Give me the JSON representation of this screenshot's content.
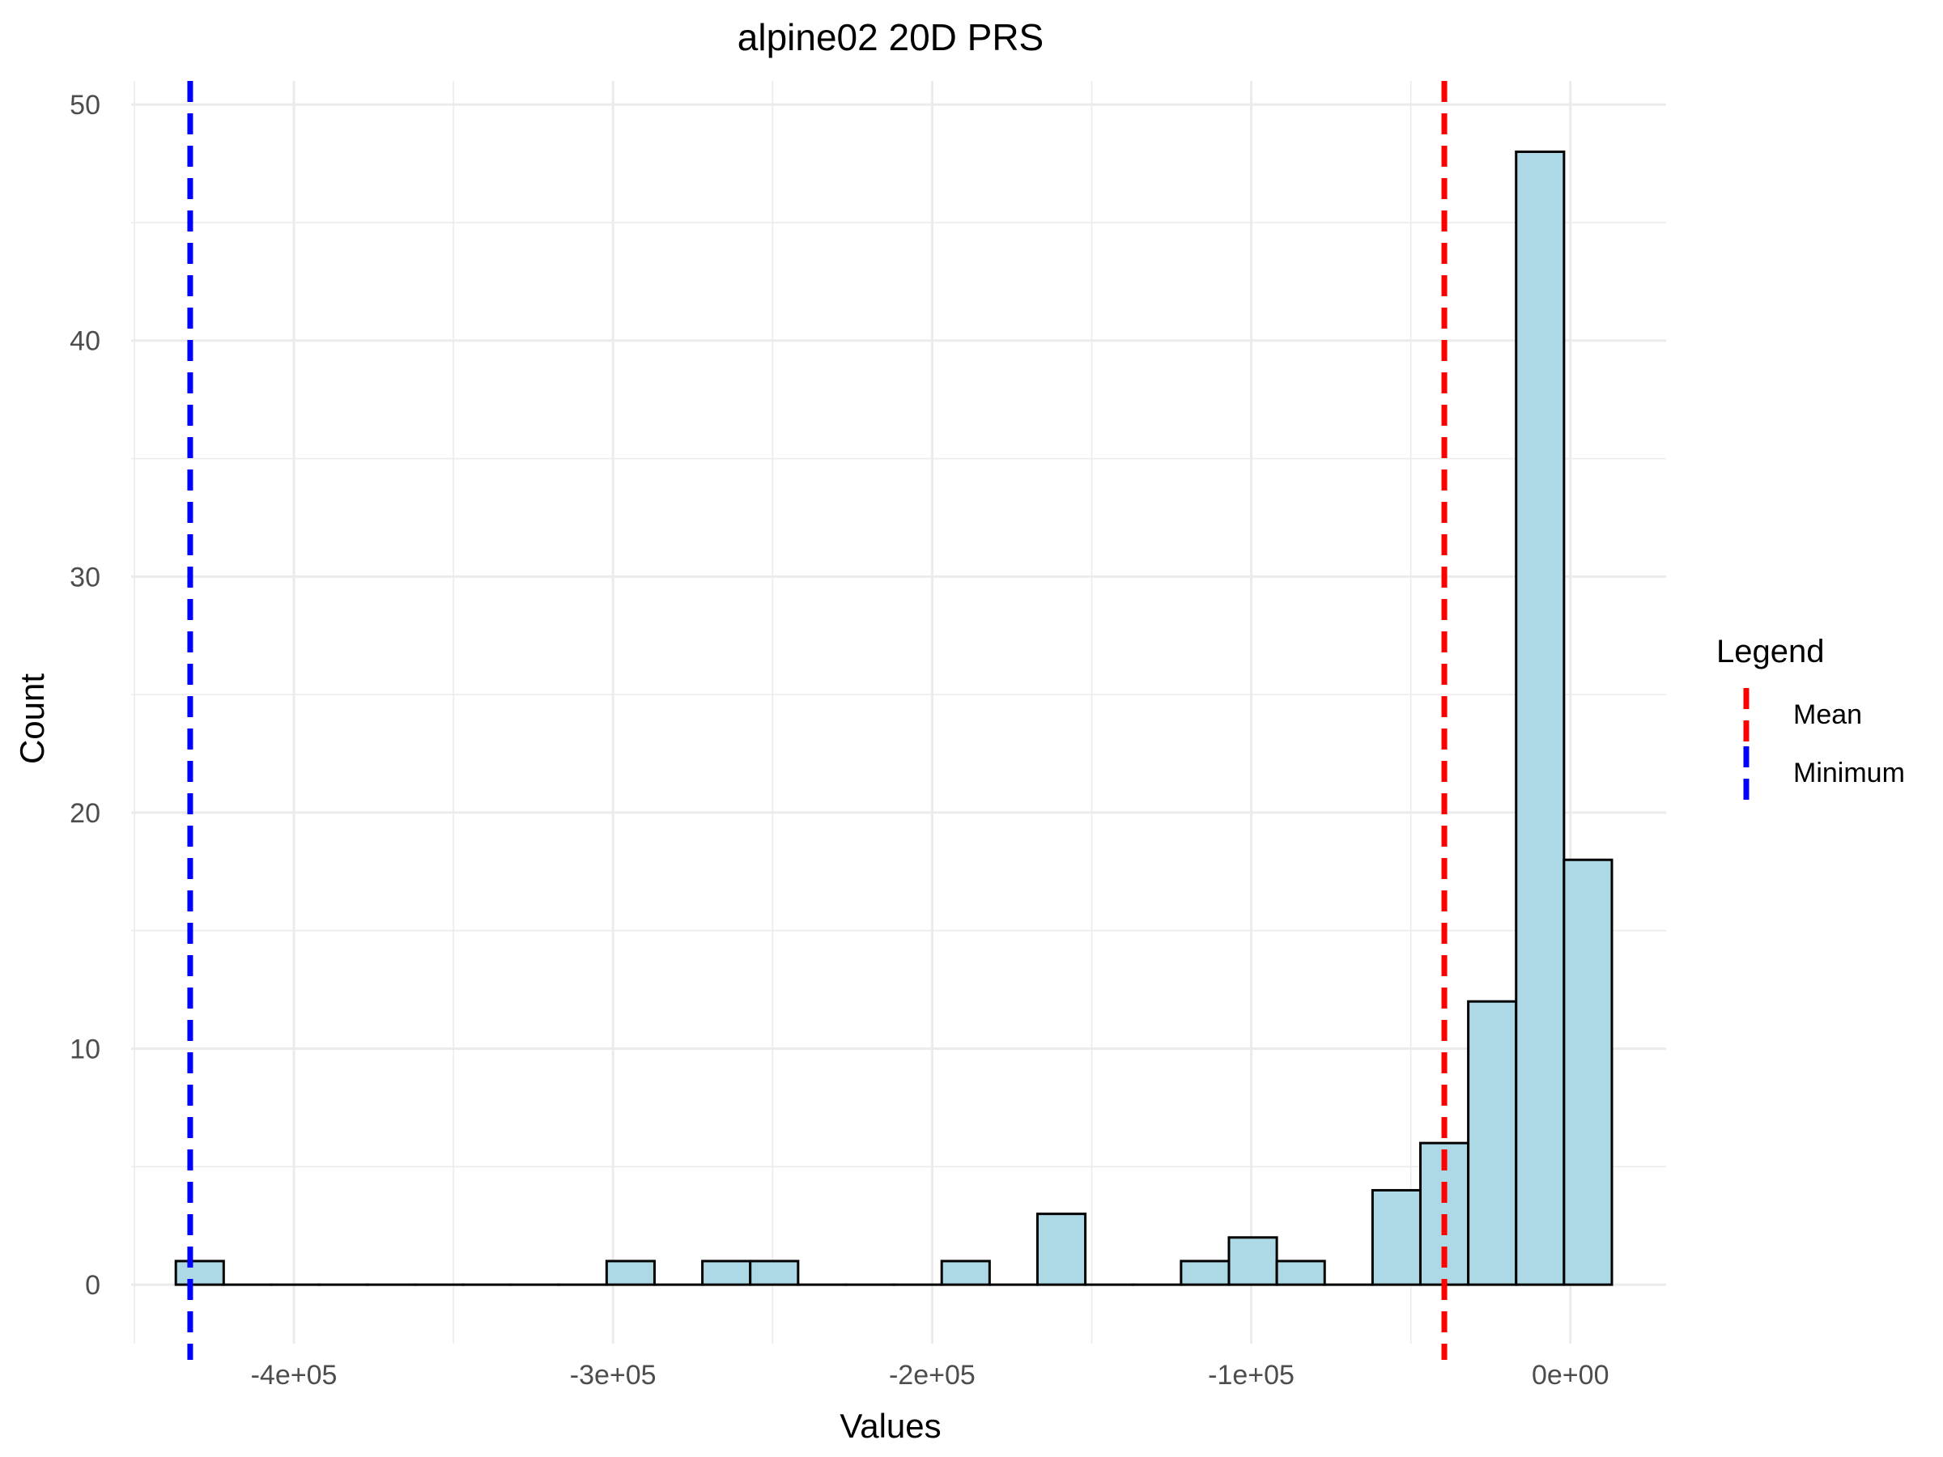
{
  "chart_data": {
    "type": "bar",
    "title": "alpine02 20D PRS",
    "xlabel": "Values",
    "ylabel": "Count",
    "xlim": [
      -451000,
      30000
    ],
    "ylim": [
      -2.5,
      51
    ],
    "x_ticks": [
      {
        "value": -400000,
        "label": "-4e+05"
      },
      {
        "value": -300000,
        "label": "-3e+05"
      },
      {
        "value": -200000,
        "label": "-2e+05"
      },
      {
        "value": -100000,
        "label": "-1e+05"
      },
      {
        "value": 0,
        "label": "0e+00"
      }
    ],
    "y_ticks": [
      {
        "value": 0,
        "label": "0"
      },
      {
        "value": 10,
        "label": "10"
      },
      {
        "value": 20,
        "label": "20"
      },
      {
        "value": 30,
        "label": "30"
      },
      {
        "value": 40,
        "label": "40"
      },
      {
        "value": 50,
        "label": "50"
      }
    ],
    "bin_width": 15000,
    "bins": [
      {
        "start": -437000,
        "count": 1
      },
      {
        "start": -422000,
        "count": 0
      },
      {
        "start": -407000,
        "count": 0
      },
      {
        "start": -392000,
        "count": 0
      },
      {
        "start": -377000,
        "count": 0
      },
      {
        "start": -362000,
        "count": 0
      },
      {
        "start": -347000,
        "count": 0
      },
      {
        "start": -332000,
        "count": 0
      },
      {
        "start": -317000,
        "count": 0
      },
      {
        "start": -302000,
        "count": 1
      },
      {
        "start": -287000,
        "count": 0
      },
      {
        "start": -272000,
        "count": 1
      },
      {
        "start": -257000,
        "count": 1
      },
      {
        "start": -242000,
        "count": 0
      },
      {
        "start": -227000,
        "count": 0
      },
      {
        "start": -212000,
        "count": 0
      },
      {
        "start": -197000,
        "count": 1
      },
      {
        "start": -182000,
        "count": 0
      },
      {
        "start": -167000,
        "count": 3
      },
      {
        "start": -152000,
        "count": 0
      },
      {
        "start": -137000,
        "count": 0
      },
      {
        "start": -122000,
        "count": 1
      },
      {
        "start": -107000,
        "count": 2
      },
      {
        "start": -92000,
        "count": 1
      },
      {
        "start": -77000,
        "count": 0
      },
      {
        "start": -62000,
        "count": 4
      },
      {
        "start": -47000,
        "count": 6
      },
      {
        "start": -32000,
        "count": 12
      },
      {
        "start": -17000,
        "count": 48
      },
      {
        "start": -2000,
        "count": 18
      }
    ],
    "vlines": [
      {
        "name": "Mean",
        "value": -39500,
        "color": "#ff0000"
      },
      {
        "name": "Minimum",
        "value": -432500,
        "color": "#0000ff"
      }
    ],
    "legend": {
      "title": "Legend",
      "placement": "right"
    },
    "grid": true,
    "colors": {
      "bar_fill": "#add8e6",
      "bar_stroke": "#000000",
      "grid": "#ebebeb",
      "text": "#4d4d4d"
    }
  }
}
